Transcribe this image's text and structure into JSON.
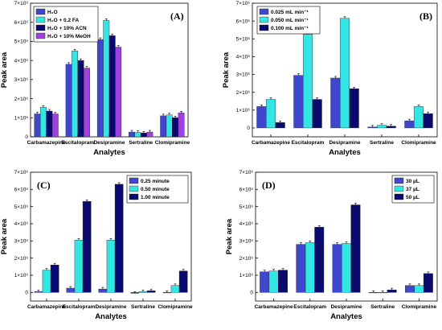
{
  "chart_data": [
    {
      "type": "bar",
      "panel_label": "(A)",
      "xlabel": "Analytes",
      "ylabel": "Peak area",
      "categories": [
        "Carbamazepine",
        "Escitalopram",
        "Desipramine",
        "Sertraline",
        "Clomipramine"
      ],
      "ylim": [
        0,
        7000000
      ],
      "yticks": [
        0,
        1000000,
        2000000,
        3000000,
        4000000,
        5000000,
        6000000,
        7000000
      ],
      "ytick_labels": [
        "0",
        "1×10⁶",
        "2×10⁶",
        "3×10⁶",
        "4×10⁶",
        "5×10⁶",
        "6×10⁶",
        "7×10⁶"
      ],
      "legend_position": "top-left",
      "series": [
        {
          "name": "H₂O",
          "color": "#3f48cc",
          "values": [
            1200000,
            3800000,
            5100000,
            250000,
            1100000
          ]
        },
        {
          "name": "H₂O + 0.2 FA",
          "color": "#33e6e6",
          "values": [
            1550000,
            4500000,
            6100000,
            230000,
            1150000
          ]
        },
        {
          "name": "H₂O + 10% ACN",
          "color": "#0a0a6e",
          "values": [
            1350000,
            4000000,
            5300000,
            200000,
            1000000
          ]
        },
        {
          "name": "H₂O + 10% MeOH",
          "color": "#a040e0",
          "values": [
            1200000,
            3600000,
            4700000,
            250000,
            1250000
          ]
        }
      ]
    },
    {
      "type": "bar",
      "panel_label": "(B)",
      "xlabel": "Analytes",
      "ylabel": "Peak area",
      "categories": [
        "Carbamazepine",
        "Escitalopram",
        "Desipramine",
        "Sertraline",
        "Clomipramine"
      ],
      "ylim": [
        -500000,
        7000000
      ],
      "yticks": [
        0,
        1000000,
        2000000,
        3000000,
        4000000,
        5000000,
        6000000,
        7000000
      ],
      "ytick_labels": [
        "0",
        "1×10⁶",
        "2×10⁶",
        "3×10⁶",
        "4×10⁶",
        "5×10⁶",
        "6×10⁶",
        "7×10⁶"
      ],
      "legend_position": "top-left",
      "series": [
        {
          "name": "0.025 mL min⁻¹",
          "color": "#3f48cc",
          "values": [
            1200000,
            2950000,
            2800000,
            50000,
            400000
          ]
        },
        {
          "name": "0.050 mL min⁻¹",
          "color": "#33e6e6",
          "values": [
            1600000,
            5250000,
            6150000,
            150000,
            1200000
          ]
        },
        {
          "name": "0.100 mL min⁻¹",
          "color": "#0a0a6e",
          "values": [
            300000,
            1600000,
            2200000,
            100000,
            800000
          ]
        }
      ]
    },
    {
      "type": "bar",
      "panel_label": "(C)",
      "xlabel": "Analytes",
      "ylabel": "Peak area",
      "categories": [
        "Carbamazepine",
        "Escitalopram",
        "Desipramine",
        "Sertraline",
        "Clomipramine"
      ],
      "ylim": [
        -500000,
        7000000
      ],
      "yticks": [
        0,
        1000000,
        2000000,
        3000000,
        4000000,
        5000000,
        6000000,
        7000000
      ],
      "ytick_labels": [
        "0",
        "1×10⁶",
        "2×10⁶",
        "3×10⁶",
        "4×10⁶",
        "5×10⁶",
        "6×10⁶",
        "7×10⁶"
      ],
      "legend_position": "top-right",
      "series": [
        {
          "name": "0.25 minute",
          "color": "#3f48cc",
          "values": [
            50000,
            250000,
            200000,
            -50000,
            0
          ]
        },
        {
          "name": "0.50 minute",
          "color": "#33e6e6",
          "values": [
            1300000,
            3050000,
            3050000,
            50000,
            400000
          ]
        },
        {
          "name": "1.00 minute",
          "color": "#0a0a6e",
          "values": [
            1600000,
            5300000,
            6300000,
            100000,
            1250000
          ]
        }
      ]
    },
    {
      "type": "bar",
      "panel_label": "(D)",
      "xlabel": "Analytes",
      "ylabel": "Peak area",
      "categories": [
        "Carbamazepine",
        "Escitalopram",
        "Desipramine",
        "Sertraline",
        "Clomipramine"
      ],
      "ylim": [
        -500000,
        7000000
      ],
      "yticks": [
        0,
        1000000,
        2000000,
        3000000,
        4000000,
        5000000,
        6000000,
        7000000
      ],
      "ytick_labels": [
        "0",
        "1×10⁶",
        "2×10⁶",
        "3×10⁶",
        "4×10⁶",
        "5×10⁶",
        "6×10⁶",
        "7×10⁶"
      ],
      "legend_position": "top-right",
      "series": [
        {
          "name": "30 µL",
          "color": "#3f48cc",
          "values": [
            1200000,
            2800000,
            2800000,
            0,
            400000
          ]
        },
        {
          "name": "37 µL",
          "color": "#33e6e6",
          "values": [
            1250000,
            2900000,
            2850000,
            0,
            400000
          ]
        },
        {
          "name": "50 µL",
          "color": "#0a0a6e",
          "values": [
            1300000,
            3800000,
            5100000,
            150000,
            1100000
          ]
        }
      ]
    }
  ]
}
